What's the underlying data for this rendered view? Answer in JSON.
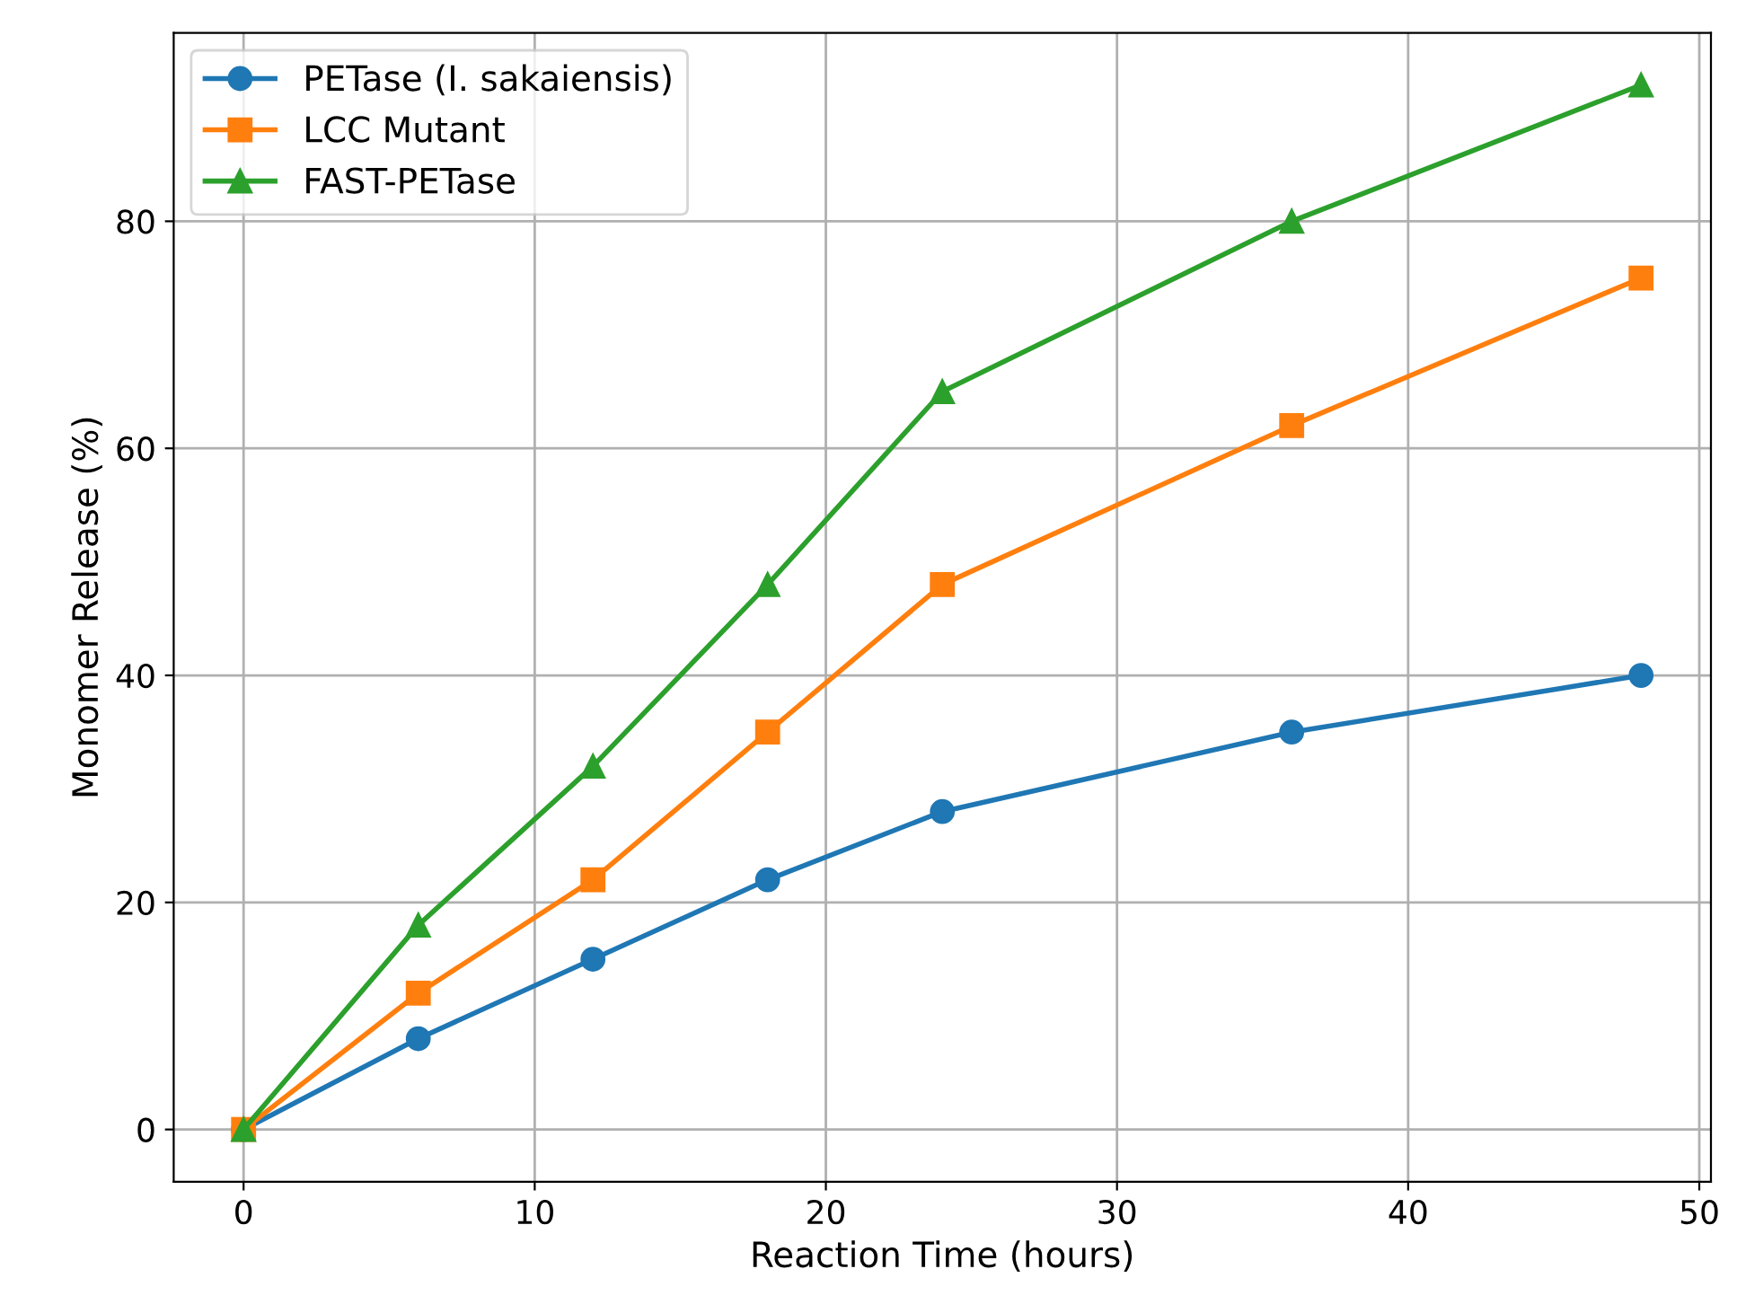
{
  "chart_data": {
    "type": "line",
    "xlabel": "Reaction Time (hours)",
    "ylabel": "Monomer Release (%)",
    "x": [
      0,
      6,
      12,
      18,
      24,
      36,
      48
    ],
    "series": [
      {
        "name": "PETase (I. sakaiensis)",
        "color": "#1f77b4",
        "marker": "circle",
        "values": [
          0,
          8,
          15,
          22,
          28,
          35,
          40
        ]
      },
      {
        "name": "LCC Mutant",
        "color": "#ff7f0e",
        "marker": "square",
        "values": [
          0,
          12,
          22,
          35,
          48,
          62,
          75
        ]
      },
      {
        "name": "FAST-PETase",
        "color": "#2ca02c",
        "marker": "triangle",
        "values": [
          0,
          18,
          32,
          48,
          65,
          80,
          92
        ]
      }
    ],
    "xlim": [
      -2.4,
      50.4
    ],
    "ylim": [
      -4.6,
      96.6
    ],
    "xticks": [
      0,
      10,
      20,
      30,
      40,
      50
    ],
    "yticks": [
      0,
      20,
      40,
      60,
      80
    ],
    "grid": true,
    "legend": "top left",
    "line_style": "solid"
  }
}
